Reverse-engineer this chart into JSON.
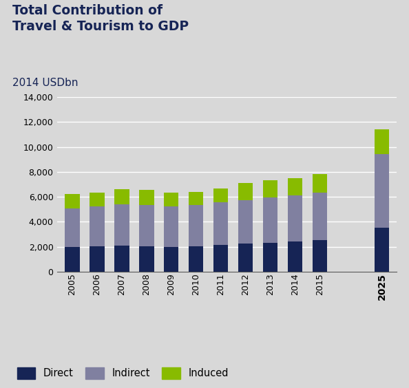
{
  "title": "Total Contribution of\nTravel & Tourism to GDP",
  "subtitle": "2014 USDbn",
  "categories": [
    "2005",
    "2006",
    "2007",
    "2008",
    "2009",
    "2010",
    "2011",
    "2012",
    "2013",
    "2014",
    "2015",
    "2025"
  ],
  "direct": [
    2000,
    2050,
    2100,
    2050,
    1980,
    2020,
    2150,
    2250,
    2300,
    2400,
    2500,
    3500
  ],
  "indirect": [
    3050,
    3200,
    3300,
    3300,
    3250,
    3300,
    3400,
    3500,
    3650,
    3700,
    3850,
    5900
  ],
  "induced": [
    1150,
    1100,
    1200,
    1200,
    1100,
    1050,
    1100,
    1350,
    1350,
    1400,
    1450,
    2000
  ],
  "color_direct": "#162455",
  "color_indirect": "#8080a0",
  "color_induced": "#88bb00",
  "background_color": "#d8d8d8",
  "plot_bg_color": "#d8d8d8",
  "ylim": [
    0,
    14000
  ],
  "yticks": [
    0,
    2000,
    4000,
    6000,
    8000,
    10000,
    12000,
    14000
  ],
  "title_fontsize": 13.5,
  "subtitle_fontsize": 11,
  "legend_fontsize": 10.5,
  "tick_fontsize": 9,
  "bar_width": 0.6
}
